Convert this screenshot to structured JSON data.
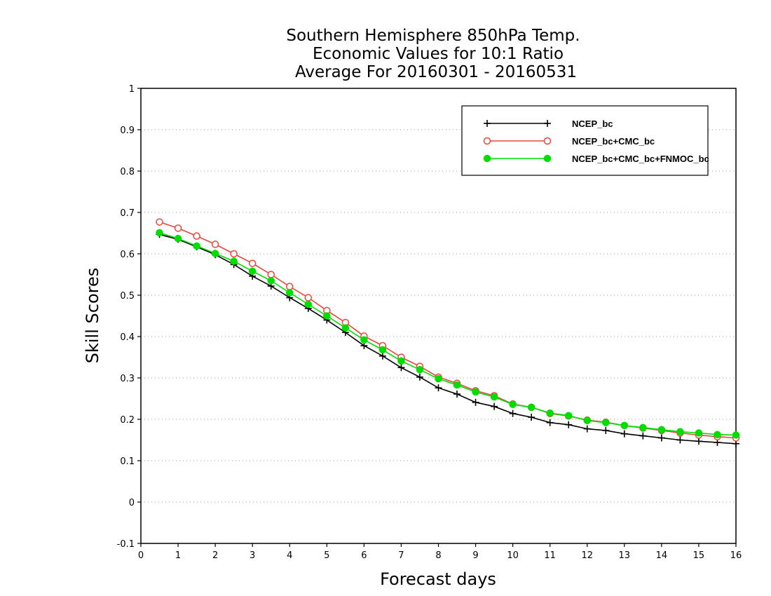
{
  "chart_data": {
    "type": "line",
    "title": [
      "Southern Hemisphere 850hPa Temp.",
      "Economic Values for 10:1 Ratio",
      "Average For 20160301 - 20160531"
    ],
    "xlabel": "Forecast days",
    "ylabel": "Skill Scores",
    "xlim": [
      0,
      16
    ],
    "ylim": [
      -0.1,
      1
    ],
    "xticks": [
      "0",
      "1",
      "2",
      "3",
      "4",
      "5",
      "6",
      "7",
      "8",
      "9",
      "10",
      "11",
      "12",
      "13",
      "14",
      "15",
      "16"
    ],
    "yticks": [
      "-0.1",
      "0",
      "0.1",
      "0.2",
      "0.3",
      "0.4",
      "0.5",
      "0.6",
      "0.7",
      "0.8",
      "0.9",
      "1"
    ],
    "ytick_values": [
      -0.1,
      0,
      0.1,
      0.2,
      0.3,
      0.4,
      0.5,
      0.6,
      0.7,
      0.8,
      0.9,
      1
    ],
    "grid": "horizontal dotted",
    "legend_position": "top-right",
    "x": [
      0.5,
      1,
      1.5,
      2,
      2.5,
      3,
      3.5,
      4,
      4.5,
      5,
      5.5,
      6,
      6.5,
      7,
      7.5,
      8,
      8.5,
      9,
      9.5,
      10,
      10.5,
      11,
      11.5,
      12,
      12.5,
      13,
      13.5,
      14,
      14.5,
      15,
      15.5,
      16
    ],
    "series": [
      {
        "name": "NCEP_bc",
        "color": "#000000",
        "marker": "plus",
        "values": [
          0.647,
          0.635,
          0.617,
          0.598,
          0.574,
          0.546,
          0.522,
          0.494,
          0.468,
          0.44,
          0.41,
          0.378,
          0.353,
          0.325,
          0.302,
          0.276,
          0.261,
          0.241,
          0.231,
          0.214,
          0.205,
          0.192,
          0.187,
          0.177,
          0.173,
          0.165,
          0.16,
          0.155,
          0.15,
          0.147,
          0.144,
          0.141
        ]
      },
      {
        "name": "NCEP_bc+CMC_bc",
        "color": "#e8463c",
        "marker": "open-circle",
        "values": [
          0.677,
          0.662,
          0.643,
          0.623,
          0.6,
          0.577,
          0.55,
          0.521,
          0.494,
          0.463,
          0.434,
          0.401,
          0.378,
          0.35,
          0.328,
          0.302,
          0.287,
          0.269,
          0.257,
          0.237,
          0.229,
          0.214,
          0.208,
          0.198,
          0.193,
          0.185,
          0.179,
          0.173,
          0.167,
          0.162,
          0.158,
          0.155
        ]
      },
      {
        "name": "NCEP_bc+CMC_bc+FNMOC_bc",
        "color": "#00dd00",
        "marker": "filled-circle",
        "values": [
          0.651,
          0.637,
          0.619,
          0.601,
          0.582,
          0.558,
          0.535,
          0.506,
          0.478,
          0.45,
          0.421,
          0.392,
          0.368,
          0.341,
          0.32,
          0.298,
          0.283,
          0.266,
          0.254,
          0.236,
          0.229,
          0.215,
          0.209,
          0.197,
          0.192,
          0.185,
          0.18,
          0.175,
          0.17,
          0.167,
          0.163,
          0.162
        ]
      }
    ]
  }
}
